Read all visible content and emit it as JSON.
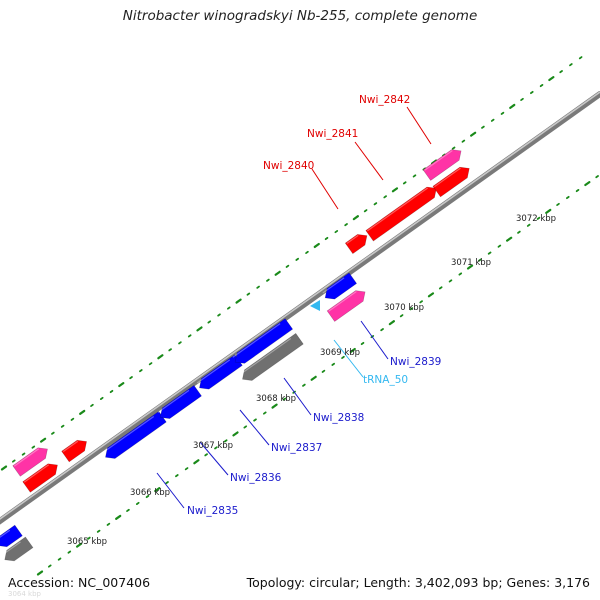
{
  "title": "Nitrobacter winogradskyi Nb-255, complete genome",
  "footer": {
    "accession": "Accession: NC_007406",
    "stats": "Topology: circular; Length: 3,402,093 bp; Genes: 3,176"
  },
  "faded_label": "3064 kbp",
  "colors": {
    "backbone": "#8c8c8c",
    "ticks": "#1a8a1a",
    "forward_highlight": "#ff0000",
    "forward_other": "#ff33a6",
    "reverse_highlight": "#0000ff",
    "reverse_other": "#707070",
    "trna": "#33b8f0"
  },
  "scale_kbp": [
    {
      "pos": 3065,
      "label": "3065 kbp"
    },
    {
      "pos": 3066,
      "label": "3066 kbp"
    },
    {
      "pos": 3067,
      "label": "3067 kbp"
    },
    {
      "pos": 3068,
      "label": "3068 kbp"
    },
    {
      "pos": 3069,
      "label": "3069 kbp"
    },
    {
      "pos": 3070,
      "label": "3070 kbp"
    },
    {
      "pos": 3071,
      "label": "3071 kbp"
    },
    {
      "pos": 3072,
      "label": "3072 kbp"
    }
  ],
  "genes": [
    {
      "name": "Nwi_2835",
      "strand": "reverse",
      "color": "blue"
    },
    {
      "name": "Nwi_2836",
      "strand": "reverse",
      "color": "blue"
    },
    {
      "name": "Nwi_2837",
      "strand": "reverse",
      "color": "blue"
    },
    {
      "name": "Nwi_2838",
      "strand": "reverse",
      "color": "blue"
    },
    {
      "name": "tRNA_50",
      "strand": "reverse",
      "color": "cyan"
    },
    {
      "name": "Nwi_2839",
      "strand": "reverse",
      "color": "blue"
    },
    {
      "name": "Nwi_2840",
      "strand": "forward",
      "color": "red"
    },
    {
      "name": "Nwi_2841",
      "strand": "forward",
      "color": "red"
    },
    {
      "name": "Nwi_2842",
      "strand": "forward",
      "color": "red"
    }
  ]
}
